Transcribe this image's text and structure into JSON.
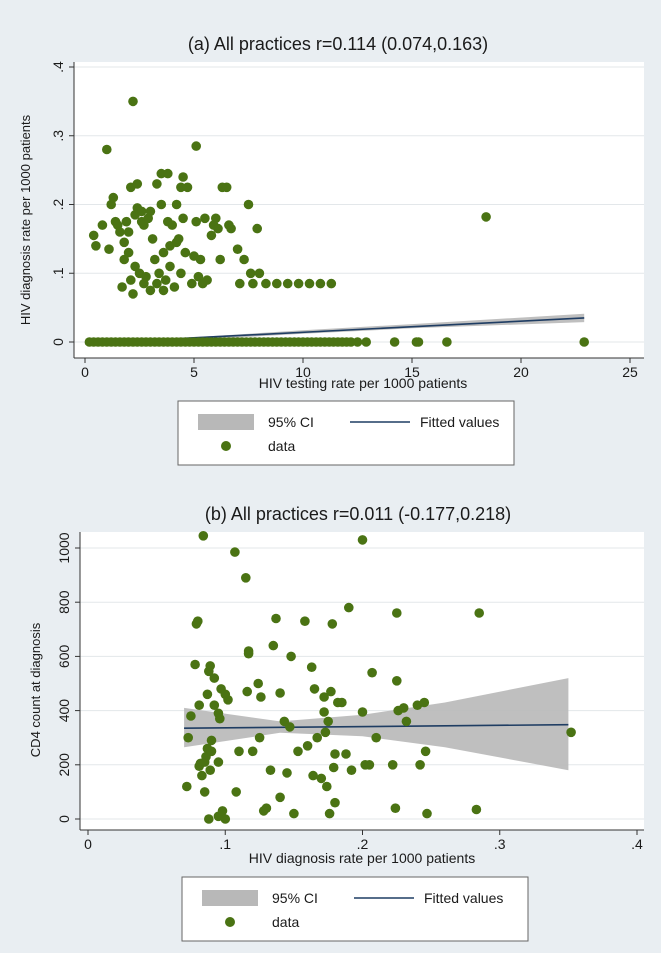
{
  "chart_data": [
    {
      "type": "scatter",
      "title": "(a) All practices r=0.114 (0.074,0.163)",
      "xlabel": "HIV testing rate per 1000 patients",
      "ylabel": "HIV diagnosis rate per 1000 patients",
      "xlim": [
        0,
        25
      ],
      "ylim": [
        0,
        0.4
      ],
      "x_ticks": [
        0,
        5,
        10,
        15,
        20,
        25
      ],
      "x_tick_labels": [
        "0",
        "5",
        "10",
        "15",
        "20",
        "25"
      ],
      "y_ticks": [
        0,
        0.1,
        0.2,
        0.3,
        0.4
      ],
      "y_tick_labels": [
        "0",
        ".1",
        ".2",
        ".3",
        ".4"
      ],
      "grid": "horizontal",
      "legend_position": "bottom",
      "legend": [
        "95% CI",
        "Fitted values",
        "data"
      ],
      "colors": {
        "data": "#4a7313",
        "fit": "#1f3d63",
        "ci": "#b8b8b8"
      },
      "fitted_line": {
        "x": [
          0,
          22.9
        ],
        "y": [
          -0.002,
          0.035
        ]
      },
      "ci_band": {
        "x": [
          0,
          5,
          10,
          15,
          22.9
        ],
        "lower": [
          -0.004,
          0.003,
          0.012,
          0.02,
          0.029
        ],
        "upper": [
          0.0,
          0.007,
          0.017,
          0.026,
          0.041
        ]
      },
      "points": [
        [
          0.4,
          0.155
        ],
        [
          0.5,
          0.14
        ],
        [
          0.8,
          0.17
        ],
        [
          1.0,
          0.28
        ],
        [
          1.1,
          0.135
        ],
        [
          1.2,
          0.2
        ],
        [
          1.3,
          0.21
        ],
        [
          1.4,
          0.175
        ],
        [
          1.5,
          0.17
        ],
        [
          1.6,
          0.16
        ],
        [
          1.7,
          0.08
        ],
        [
          1.8,
          0.12
        ],
        [
          1.8,
          0.145
        ],
        [
          1.9,
          0.175
        ],
        [
          2.0,
          0.16
        ],
        [
          2.0,
          0.13
        ],
        [
          2.1,
          0.09
        ],
        [
          2.1,
          0.225
        ],
        [
          2.2,
          0.07
        ],
        [
          2.2,
          0.35
        ],
        [
          2.3,
          0.185
        ],
        [
          2.3,
          0.11
        ],
        [
          2.4,
          0.195
        ],
        [
          2.4,
          0.23
        ],
        [
          2.5,
          0.1
        ],
        [
          2.6,
          0.19
        ],
        [
          2.6,
          0.175
        ],
        [
          2.7,
          0.17
        ],
        [
          2.7,
          0.085
        ],
        [
          2.8,
          0.095
        ],
        [
          2.9,
          0.18
        ],
        [
          3.0,
          0.075
        ],
        [
          3.0,
          0.19
        ],
        [
          3.1,
          0.15
        ],
        [
          3.2,
          0.12
        ],
        [
          3.3,
          0.23
        ],
        [
          3.3,
          0.085
        ],
        [
          3.4,
          0.1
        ],
        [
          3.5,
          0.2
        ],
        [
          3.5,
          0.245
        ],
        [
          3.6,
          0.13
        ],
        [
          3.6,
          0.075
        ],
        [
          3.7,
          0.09
        ],
        [
          3.8,
          0.245
        ],
        [
          3.8,
          0.175
        ],
        [
          3.9,
          0.14
        ],
        [
          3.9,
          0.11
        ],
        [
          4.0,
          0.17
        ],
        [
          4.1,
          0.08
        ],
        [
          4.2,
          0.2
        ],
        [
          4.2,
          0.145
        ],
        [
          4.3,
          0.15
        ],
        [
          4.4,
          0.1
        ],
        [
          4.4,
          0.225
        ],
        [
          4.5,
          0.18
        ],
        [
          4.5,
          0.24
        ],
        [
          4.6,
          0.13
        ],
        [
          4.7,
          0.225
        ],
        [
          4.9,
          0.085
        ],
        [
          5.0,
          0.125
        ],
        [
          5.1,
          0.175
        ],
        [
          5.1,
          0.285
        ],
        [
          5.2,
          0.095
        ],
        [
          5.3,
          0.12
        ],
        [
          5.4,
          0.085
        ],
        [
          5.5,
          0.18
        ],
        [
          5.6,
          0.09
        ],
        [
          5.8,
          0.155
        ],
        [
          5.9,
          0.17
        ],
        [
          6.0,
          0.18
        ],
        [
          6.1,
          0.165
        ],
        [
          6.2,
          0.12
        ],
        [
          6.3,
          0.225
        ],
        [
          6.5,
          0.225
        ],
        [
          6.6,
          0.17
        ],
        [
          6.7,
          0.165
        ],
        [
          7.0,
          0.135
        ],
        [
          7.1,
          0.085
        ],
        [
          7.3,
          0.12
        ],
        [
          7.5,
          0.2
        ],
        [
          7.6,
          0.1
        ],
        [
          7.7,
          0.085
        ],
        [
          7.9,
          0.165
        ],
        [
          8.0,
          0.1
        ],
        [
          8.3,
          0.085
        ],
        [
          8.8,
          0.085
        ],
        [
          9.3,
          0.085
        ],
        [
          9.8,
          0.085
        ],
        [
          10.3,
          0.085
        ],
        [
          10.8,
          0.085
        ],
        [
          11.3,
          0.085
        ],
        [
          18.4,
          0.182
        ],
        [
          0.2,
          0
        ],
        [
          0.4,
          0
        ],
        [
          0.6,
          0
        ],
        [
          0.8,
          0
        ],
        [
          1.0,
          0
        ],
        [
          1.2,
          0
        ],
        [
          1.4,
          0
        ],
        [
          1.6,
          0
        ],
        [
          1.8,
          0
        ],
        [
          2.0,
          0
        ],
        [
          2.2,
          0
        ],
        [
          2.4,
          0
        ],
        [
          2.6,
          0
        ],
        [
          2.8,
          0
        ],
        [
          3.0,
          0
        ],
        [
          3.2,
          0
        ],
        [
          3.4,
          0
        ],
        [
          3.6,
          0
        ],
        [
          3.8,
          0
        ],
        [
          4.0,
          0
        ],
        [
          4.2,
          0
        ],
        [
          4.4,
          0
        ],
        [
          4.6,
          0
        ],
        [
          4.8,
          0
        ],
        [
          5.0,
          0
        ],
        [
          5.2,
          0
        ],
        [
          5.4,
          0
        ],
        [
          5.6,
          0
        ],
        [
          5.8,
          0
        ],
        [
          6.0,
          0
        ],
        [
          6.2,
          0
        ],
        [
          6.4,
          0
        ],
        [
          6.6,
          0
        ],
        [
          6.8,
          0
        ],
        [
          7.0,
          0
        ],
        [
          7.2,
          0
        ],
        [
          7.4,
          0
        ],
        [
          7.6,
          0
        ],
        [
          7.8,
          0
        ],
        [
          8.0,
          0
        ],
        [
          8.2,
          0
        ],
        [
          8.4,
          0
        ],
        [
          8.6,
          0
        ],
        [
          8.8,
          0
        ],
        [
          9.0,
          0
        ],
        [
          9.2,
          0
        ],
        [
          9.4,
          0
        ],
        [
          9.6,
          0
        ],
        [
          9.8,
          0
        ],
        [
          10.0,
          0
        ],
        [
          10.2,
          0
        ],
        [
          10.4,
          0
        ],
        [
          10.6,
          0
        ],
        [
          10.8,
          0
        ],
        [
          11.0,
          0
        ],
        [
          11.2,
          0
        ],
        [
          11.4,
          0
        ],
        [
          11.6,
          0
        ],
        [
          11.8,
          0
        ],
        [
          12.0,
          0
        ],
        [
          12.2,
          0
        ],
        [
          12.5,
          0
        ],
        [
          12.9,
          0
        ],
        [
          14.2,
          0
        ],
        [
          15.2,
          0
        ],
        [
          15.3,
          0
        ],
        [
          16.6,
          0
        ],
        [
          22.9,
          0
        ]
      ]
    },
    {
      "type": "scatter",
      "title": "(b) All practices r=0.011 (-0.177,0.218)",
      "xlabel": "HIV diagnosis rate per 1000 patients",
      "ylabel": "CD4 count at diagnosis",
      "xlim": [
        0,
        0.4
      ],
      "ylim": [
        0,
        1000
      ],
      "x_ticks": [
        0,
        0.1,
        0.2,
        0.3,
        0.4
      ],
      "x_tick_labels": [
        "0",
        ".1",
        ".2",
        ".3",
        ".4"
      ],
      "y_ticks": [
        0,
        200,
        400,
        600,
        800,
        1000
      ],
      "y_tick_labels": [
        "0",
        "200",
        "400",
        "600",
        "800",
        "1000"
      ],
      "grid": "horizontal",
      "legend_position": "bottom",
      "legend": [
        "95% CI",
        "Fitted values",
        "data"
      ],
      "colors": {
        "data": "#4a7313",
        "fit": "#1f3d63",
        "ci": "#b8b8b8"
      },
      "fitted_line": {
        "x": [
          0.07,
          0.35
        ],
        "y": [
          335,
          348
        ]
      },
      "ci_band": {
        "x": [
          0.07,
          0.14,
          0.2,
          0.26,
          0.35
        ],
        "lower": [
          265,
          318,
          305,
          265,
          180
        ],
        "upper": [
          410,
          360,
          385,
          430,
          520
        ]
      },
      "points": [
        [
          0.072,
          120
        ],
        [
          0.073,
          300
        ],
        [
          0.075,
          380
        ],
        [
          0.078,
          570
        ],
        [
          0.079,
          720
        ],
        [
          0.08,
          730
        ],
        [
          0.081,
          420
        ],
        [
          0.081,
          195
        ],
        [
          0.082,
          205
        ],
        [
          0.083,
          160
        ],
        [
          0.084,
          1045
        ],
        [
          0.085,
          210
        ],
        [
          0.085,
          100
        ],
        [
          0.086,
          230
        ],
        [
          0.087,
          260
        ],
        [
          0.087,
          460
        ],
        [
          0.088,
          0
        ],
        [
          0.088,
          545
        ],
        [
          0.089,
          565
        ],
        [
          0.089,
          180
        ],
        [
          0.09,
          290
        ],
        [
          0.09,
          250
        ],
        [
          0.092,
          520
        ],
        [
          0.092,
          420
        ],
        [
          0.095,
          210
        ],
        [
          0.095,
          390
        ],
        [
          0.095,
          10
        ],
        [
          0.096,
          370
        ],
        [
          0.097,
          480
        ],
        [
          0.098,
          30
        ],
        [
          0.1,
          0
        ],
        [
          0.1,
          460
        ],
        [
          0.102,
          440
        ],
        [
          0.107,
          985
        ],
        [
          0.108,
          100
        ],
        [
          0.11,
          250
        ],
        [
          0.115,
          890
        ],
        [
          0.116,
          470
        ],
        [
          0.117,
          620
        ],
        [
          0.117,
          610
        ],
        [
          0.12,
          250
        ],
        [
          0.124,
          500
        ],
        [
          0.125,
          300
        ],
        [
          0.126,
          450
        ],
        [
          0.128,
          30
        ],
        [
          0.13,
          40
        ],
        [
          0.133,
          180
        ],
        [
          0.135,
          640
        ],
        [
          0.137,
          740
        ],
        [
          0.14,
          80
        ],
        [
          0.14,
          465
        ],
        [
          0.143,
          360
        ],
        [
          0.145,
          170
        ],
        [
          0.147,
          340
        ],
        [
          0.148,
          600
        ],
        [
          0.15,
          20
        ],
        [
          0.153,
          250
        ],
        [
          0.158,
          730
        ],
        [
          0.16,
          270
        ],
        [
          0.163,
          560
        ],
        [
          0.164,
          160
        ],
        [
          0.165,
          480
        ],
        [
          0.167,
          300
        ],
        [
          0.17,
          150
        ],
        [
          0.172,
          450
        ],
        [
          0.172,
          395
        ],
        [
          0.173,
          320
        ],
        [
          0.174,
          120
        ],
        [
          0.175,
          360
        ],
        [
          0.176,
          20
        ],
        [
          0.177,
          470
        ],
        [
          0.178,
          720
        ],
        [
          0.179,
          190
        ],
        [
          0.18,
          240
        ],
        [
          0.18,
          60
        ],
        [
          0.182,
          430
        ],
        [
          0.185,
          430
        ],
        [
          0.188,
          240
        ],
        [
          0.19,
          780
        ],
        [
          0.192,
          180
        ],
        [
          0.2,
          395
        ],
        [
          0.2,
          1030
        ],
        [
          0.202,
          200
        ],
        [
          0.205,
          200
        ],
        [
          0.207,
          540
        ],
        [
          0.21,
          300
        ],
        [
          0.222,
          200
        ],
        [
          0.224,
          40
        ],
        [
          0.225,
          760
        ],
        [
          0.225,
          510
        ],
        [
          0.226,
          400
        ],
        [
          0.23,
          410
        ],
        [
          0.232,
          360
        ],
        [
          0.24,
          420
        ],
        [
          0.242,
          200
        ],
        [
          0.245,
          430
        ],
        [
          0.246,
          250
        ],
        [
          0.247,
          20
        ],
        [
          0.283,
          35
        ],
        [
          0.285,
          760
        ],
        [
          0.352,
          320
        ]
      ]
    }
  ]
}
